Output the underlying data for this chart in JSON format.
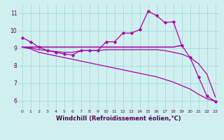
{
  "bg_color": "#d0f0f0",
  "grid_color": "#a8d8d8",
  "line_color": "#aa00aa",
  "xlabel": "Windchill (Refroidissement éolien,°C)",
  "xlabel_fontsize": 6.0,
  "xlim": [
    -0.5,
    23.5
  ],
  "ylim": [
    5.5,
    11.5
  ],
  "yticks": [
    6,
    7,
    8,
    9,
    10,
    11
  ],
  "xticks": [
    0,
    1,
    2,
    3,
    4,
    5,
    6,
    7,
    8,
    9,
    10,
    11,
    12,
    13,
    14,
    15,
    16,
    17,
    18,
    19,
    20,
    21,
    22,
    23
  ],
  "series1_x": [
    0,
    1,
    2,
    3,
    4,
    5,
    6,
    7,
    8,
    9,
    10,
    11,
    12,
    13,
    14,
    15,
    16,
    17,
    18,
    19,
    20,
    21,
    22,
    23
  ],
  "series1_y": [
    9.6,
    9.35,
    9.05,
    8.85,
    8.75,
    8.65,
    8.6,
    8.85,
    8.85,
    8.85,
    9.35,
    9.35,
    9.85,
    9.85,
    10.05,
    11.1,
    10.85,
    10.45,
    10.5,
    9.15,
    8.45,
    7.35,
    6.25,
    5.95
  ],
  "series2_x": [
    0,
    1,
    2,
    3,
    4,
    5,
    6,
    7,
    8,
    9,
    10,
    11,
    12,
    13,
    14,
    15,
    16,
    17,
    18,
    19
  ],
  "series2_y": [
    9.05,
    9.05,
    9.05,
    9.05,
    9.05,
    9.05,
    9.05,
    9.05,
    9.05,
    9.05,
    9.05,
    9.05,
    9.05,
    9.05,
    9.05,
    9.05,
    9.05,
    9.05,
    9.05,
    9.15
  ],
  "series3_x": [
    0,
    1,
    2,
    3,
    4,
    5,
    6,
    7,
    8,
    9,
    10,
    11,
    12,
    13,
    14,
    15,
    16,
    17,
    18,
    19,
    20,
    21,
    22,
    23
  ],
  "series3_y": [
    9.05,
    8.95,
    8.75,
    8.65,
    8.55,
    8.45,
    8.35,
    8.25,
    8.15,
    8.05,
    7.95,
    7.85,
    7.75,
    7.65,
    7.55,
    7.45,
    7.35,
    7.2,
    7.05,
    6.85,
    6.65,
    6.35,
    6.1,
    5.95
  ],
  "series4_x": [
    0,
    1,
    2,
    3,
    4,
    5,
    6,
    7,
    8,
    9,
    10,
    11,
    12,
    13,
    14,
    15,
    16,
    17,
    18,
    19,
    20,
    21,
    22,
    23
  ],
  "series4_y": [
    9.05,
    9.0,
    8.9,
    8.85,
    8.8,
    8.75,
    8.75,
    8.85,
    8.85,
    8.85,
    8.9,
    8.9,
    8.9,
    8.9,
    8.9,
    8.9,
    8.9,
    8.85,
    8.75,
    8.65,
    8.45,
    8.1,
    7.5,
    6.2
  ]
}
